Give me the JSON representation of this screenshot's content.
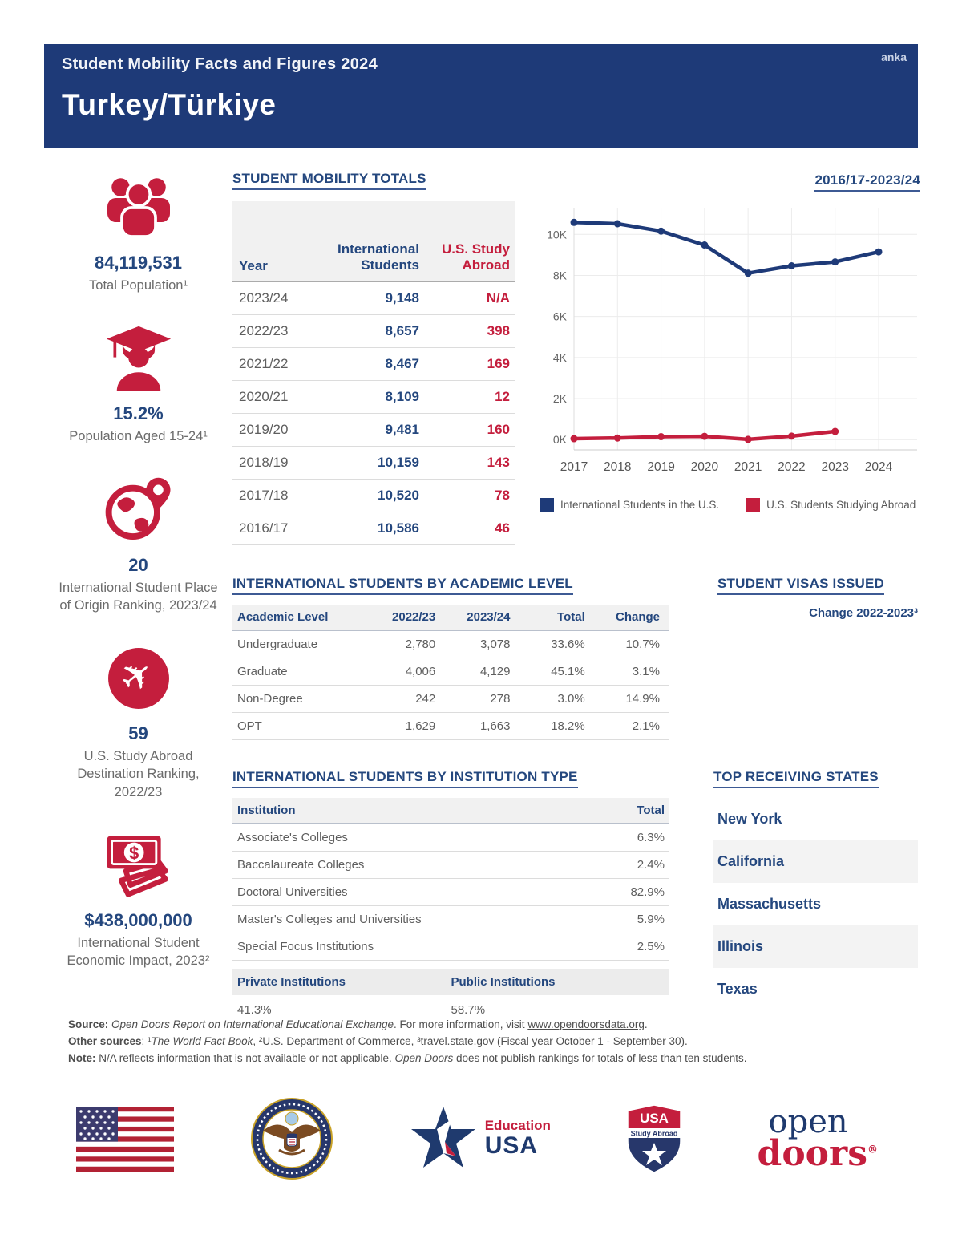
{
  "colors": {
    "navy": "#1E3A78",
    "crimson": "#C41E3D",
    "text_navy": "#24477E",
    "text_gray": "#595959",
    "row_shade": "#F3F3F3",
    "header_shade": "#F1F1F1"
  },
  "header": {
    "subtitle": "Student Mobility Facts and Figures 2024",
    "title": "Turkey/Türkiye",
    "watermark": "anka"
  },
  "sidebar": {
    "stats": [
      {
        "icon": "people-icon",
        "value": "84,119,531",
        "label": "Total Population¹"
      },
      {
        "icon": "graduate-cap-icon",
        "value": "15.2%",
        "label": "Population Aged 15-24¹"
      },
      {
        "icon": "globe-pin-icon",
        "value": "20",
        "label": "International Student Place of Origin Ranking, 2023/24"
      },
      {
        "icon": "airplane-icon",
        "value": "59",
        "label": "U.S. Study Abroad Destination Ranking, 2022/23"
      },
      {
        "icon": "money-icon",
        "value": "$438,000,000",
        "label": "International Student Economic Impact, 2023²"
      }
    ]
  },
  "mobility": {
    "heading": "STUDENT MOBILITY TOTALS",
    "columns": [
      "Year",
      "International Students",
      "U.S. Study Abroad"
    ],
    "rows": [
      [
        "2023/24",
        "9,148",
        "N/A"
      ],
      [
        "2022/23",
        "8,657",
        "398"
      ],
      [
        "2021/22",
        "8,467",
        "169"
      ],
      [
        "2020/21",
        "8,109",
        "12"
      ],
      [
        "2019/20",
        "9,481",
        "160"
      ],
      [
        "2018/19",
        "10,159",
        "143"
      ],
      [
        "2017/18",
        "10,520",
        "78"
      ],
      [
        "2016/17",
        "10,586",
        "46"
      ]
    ]
  },
  "chart_data": {
    "type": "line",
    "title": "2016/17-2023/24",
    "x_labels": [
      "2017",
      "2018",
      "2019",
      "2020",
      "2021",
      "2022",
      "2023",
      "2024"
    ],
    "series": [
      {
        "name": "International Students in the U.S.",
        "color": "#1E3A78",
        "values": [
          10586,
          10520,
          10159,
          9481,
          8109,
          8467,
          8657,
          9148
        ]
      },
      {
        "name": "U.S. Students Studying Abroad",
        "color": "#C41E3D",
        "values": [
          46,
          78,
          143,
          160,
          12,
          169,
          398,
          null
        ]
      }
    ],
    "ytick_values": [
      0,
      2000,
      4000,
      6000,
      8000,
      10000
    ],
    "ytick_labels": [
      "0K",
      "2K",
      "4K",
      "6K",
      "8K",
      "10K"
    ],
    "ylim": [
      0,
      11000
    ],
    "grid": true,
    "legend_position": "bottom"
  },
  "academic": {
    "heading": "INTERNATIONAL STUDENTS BY ACADEMIC LEVEL",
    "columns": [
      "Academic Level",
      "2022/23",
      "2023/24",
      "Total",
      "Change"
    ],
    "rows": [
      [
        "Undergraduate",
        "2,780",
        "3,078",
        "33.6%",
        "10.7%"
      ],
      [
        "Graduate",
        "4,006",
        "4,129",
        "45.1%",
        "3.1%"
      ],
      [
        "Non-Degree",
        "242",
        "278",
        "3.0%",
        "14.9%"
      ],
      [
        "OPT",
        "1,629",
        "1,663",
        "18.2%",
        "2.1%"
      ]
    ]
  },
  "visas": {
    "heading": "STUDENT VISAS ISSUED",
    "subheading": "Change 2022-2023³"
  },
  "institution": {
    "heading": "INTERNATIONAL STUDENTS BY INSTITUTION TYPE",
    "columns": [
      "Institution",
      "Total"
    ],
    "rows": [
      [
        "Associate's Colleges",
        "6.3%"
      ],
      [
        "Baccalaureate Colleges",
        "2.4%"
      ],
      [
        "Doctoral Universities",
        "82.9%"
      ],
      [
        "Master's Colleges and Universities",
        "5.9%"
      ],
      [
        "Special Focus Institutions",
        "2.5%"
      ]
    ],
    "private_label": "Private Institutions",
    "public_label": "Public Institutions",
    "private_value": "41.3%",
    "public_value": "58.7%"
  },
  "states": {
    "heading": "TOP RECEIVING STATES",
    "items": [
      "New York",
      "California",
      "Massachusetts",
      "Illinois",
      "Texas"
    ]
  },
  "source": {
    "lines": [
      [
        {
          "t": "Source:",
          "s": "b"
        },
        {
          "t": " ",
          "s": ""
        },
        {
          "t": "Open Doors Report on International Educational Exchange",
          "s": "i"
        },
        {
          "t": ". For more information, visit ",
          "s": ""
        },
        {
          "t": "www.opendoorsdata.org",
          "s": "u"
        },
        {
          "t": ".",
          "s": ""
        }
      ],
      [
        {
          "t": "Other sources",
          "s": "b"
        },
        {
          "t": ": ¹",
          "s": ""
        },
        {
          "t": "The World Fact Book",
          "s": "i"
        },
        {
          "t": ", ²U.S. Department of Commerce, ³travel.state.gov (Fiscal year October 1 - September 30).",
          "s": ""
        }
      ],
      [
        {
          "t": "Note:",
          "s": "b"
        },
        {
          "t": " N/A reflects information that is not available or not applicable. ",
          "s": ""
        },
        {
          "t": "Open Doors",
          "s": "i"
        },
        {
          "t": " does not publish rankings for totals of less than ten students.",
          "s": ""
        }
      ]
    ]
  },
  "footer": {
    "education_usa": {
      "line1": "Education",
      "line2": "USA"
    },
    "study_abroad_shield": {
      "top": "USA",
      "band": "Study Abroad"
    },
    "open_doors": {
      "line1": "open",
      "line2": "doors",
      "reg": "®"
    }
  }
}
